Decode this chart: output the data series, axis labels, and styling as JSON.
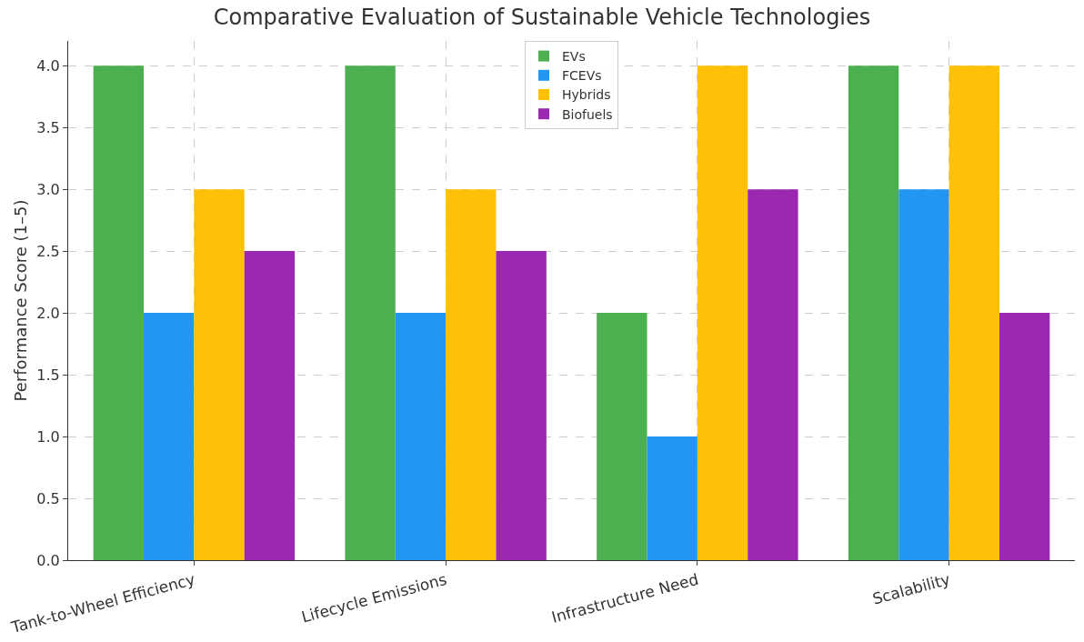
{
  "chart_data": {
    "type": "bar",
    "title": "Comparative Evaluation of Sustainable Vehicle Technologies",
    "ylabel": "Performance Score (1–5)",
    "categories": [
      "Tank-to-Wheel Efficiency",
      "Lifecycle Emissions",
      "Infrastructure Need",
      "Scalability"
    ],
    "series": [
      {
        "name": "EVs",
        "color": "#4caf50",
        "values": [
          4,
          4,
          2,
          4
        ]
      },
      {
        "name": "FCEVs",
        "color": "#2196f3",
        "values": [
          2,
          2,
          1,
          3
        ]
      },
      {
        "name": "Hybrids",
        "color": "#ffc107",
        "values": [
          3,
          3,
          4,
          4
        ]
      },
      {
        "name": "Biofuels",
        "color": "#9c27b0",
        "values": [
          2.5,
          2.5,
          3,
          2
        ]
      }
    ],
    "ylim": [
      0,
      4.2
    ],
    "yticks": [
      {
        "value": 0,
        "label": "0.0"
      },
      {
        "value": 0.5,
        "label": "0.5"
      },
      {
        "value": 1,
        "label": "1.0"
      },
      {
        "value": 1.5,
        "label": "1.5"
      },
      {
        "value": 2,
        "label": "2.0"
      },
      {
        "value": 2.5,
        "label": "2.5"
      },
      {
        "value": 3,
        "label": "3.0"
      },
      {
        "value": 3.5,
        "label": "3.5"
      },
      {
        "value": 4,
        "label": "4.0"
      }
    ],
    "grid": true,
    "legend": "top"
  }
}
